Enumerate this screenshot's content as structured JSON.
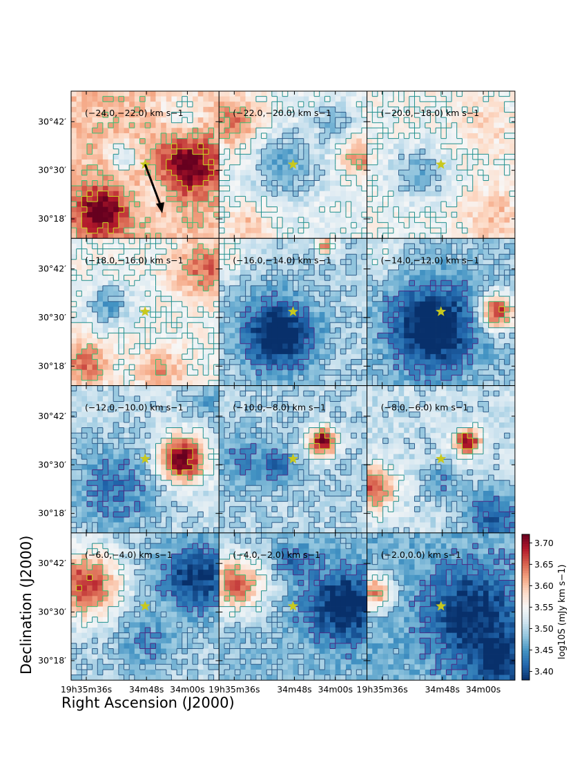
{
  "chart_data": {
    "type": "heatmap",
    "grid": {
      "rows": 4,
      "cols": 3
    },
    "xlabel": "Right Ascension (J2000)",
    "ylabel": "Declination (J2000)",
    "x_tick_labels": [
      "19h35m36s",
      "34m48s",
      "34m00s"
    ],
    "y_tick_labels": [
      "30°42′",
      "30°30′",
      "30°18′"
    ],
    "colorbar": {
      "label": "log10S (mJy km s−1)",
      "range": [
        3.38,
        3.72
      ],
      "ticks": [
        "3.70",
        "3.65",
        "3.60",
        "3.55",
        "3.50",
        "3.45",
        "3.40"
      ],
      "tick_values": [
        3.7,
        3.65,
        3.6,
        3.55,
        3.5,
        3.45,
        3.4
      ],
      "colormap": [
        "#08306b",
        "#2166ac",
        "#4393c3",
        "#92c5de",
        "#d1e5f0",
        "#f7f7f7",
        "#fddbc7",
        "#f4a582",
        "#d6604d",
        "#b2182b",
        "#67001f"
      ]
    },
    "star_marker": {
      "ra_label": "34m48s",
      "dec_label": "30°30′",
      "color": "#c8c81e"
    },
    "arrow": {
      "panel": 0,
      "direction": "south-east",
      "color": "#000000"
    },
    "contour_colors": [
      "#4c2a85",
      "#2f5d8a",
      "#21908d",
      "#3bbf73",
      "#c7e020"
    ],
    "panels": [
      {
        "label": "(−24.0,−22.0) km s−1",
        "v_min": -24.0,
        "v_max": -22.0,
        "mean_level": 3.6
      },
      {
        "label": "(−22.0,−20.0) km s−1",
        "v_min": -22.0,
        "v_max": -20.0,
        "mean_level": 3.54
      },
      {
        "label": "(−20.0,−18.0) km s−1",
        "v_min": -20.0,
        "v_max": -18.0,
        "mean_level": 3.55
      },
      {
        "label": "(−18.0,−16.0) km s−1",
        "v_min": -18.0,
        "v_max": -16.0,
        "mean_level": 3.55
      },
      {
        "label": "(−16.0,−14.0) km s−1",
        "v_min": -16.0,
        "v_max": -14.0,
        "mean_level": 3.5
      },
      {
        "label": "(−14.0,−12.0) km s−1",
        "v_min": -14.0,
        "v_max": -12.0,
        "mean_level": 3.49
      },
      {
        "label": "(−12.0,−10.0) km s−1",
        "v_min": -12.0,
        "v_max": -10.0,
        "mean_level": 3.51
      },
      {
        "label": "(−10.0,−8.0) km s−1",
        "v_min": -10.0,
        "v_max": -8.0,
        "mean_level": 3.5
      },
      {
        "label": "(−8.0,−6.0) km s−1",
        "v_min": -8.0,
        "v_max": -6.0,
        "mean_level": 3.51
      },
      {
        "label": "(−6.0,−4.0) km s−1",
        "v_min": -6.0,
        "v_max": -4.0,
        "mean_level": 3.5
      },
      {
        "label": "(−4.0,−2.0) km s−1",
        "v_min": -4.0,
        "v_max": -2.0,
        "mean_level": 3.48
      },
      {
        "label": "(−2.0,0.0) km s−1",
        "v_min": -2.0,
        "v_max": 0.0,
        "mean_level": 3.47
      }
    ]
  }
}
